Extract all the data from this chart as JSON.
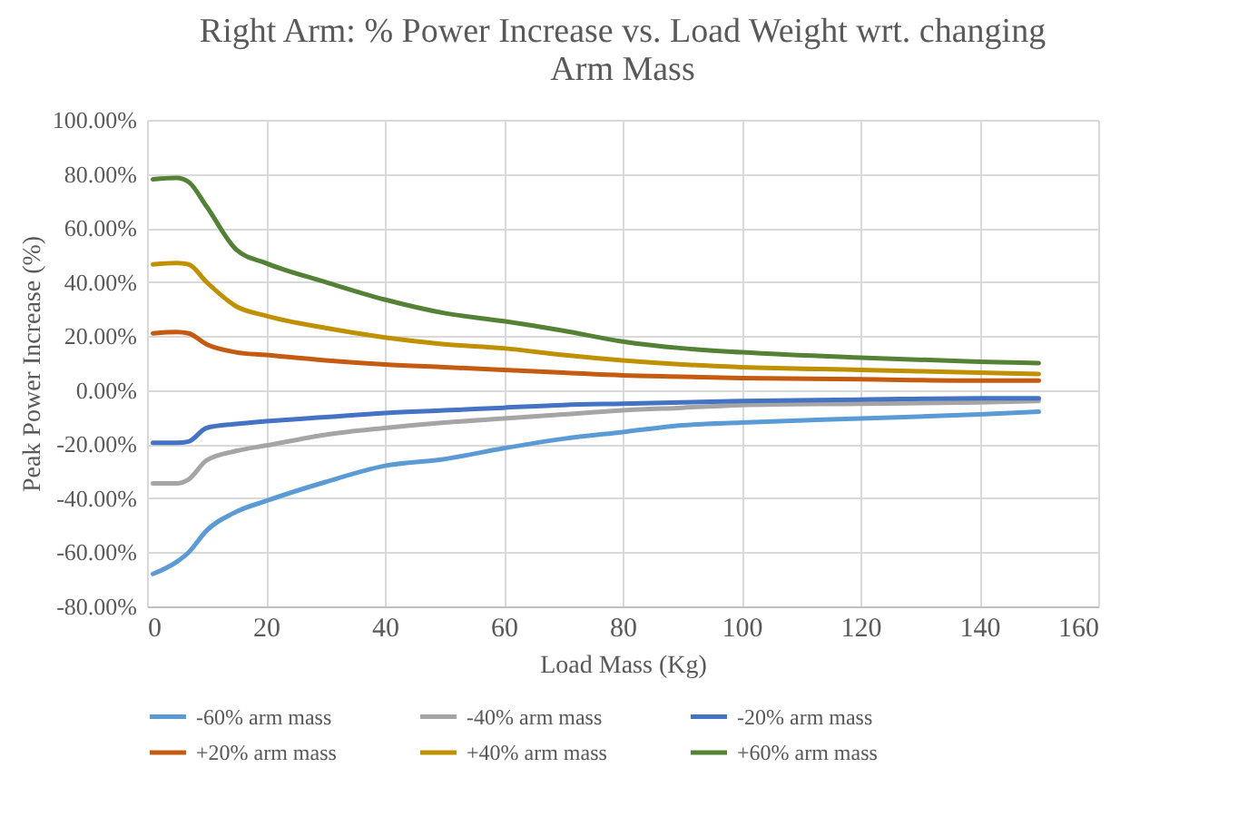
{
  "chart_data": {
    "type": "line",
    "title": "Right Arm: % Power Increase vs. Load Weight wrt. changing Arm Mass",
    "xlabel": "Load Mass (Kg)",
    "ylabel": "Peak Power Increase  (%)",
    "x": [
      1,
      5,
      7,
      10,
      15,
      20,
      30,
      40,
      50,
      60,
      70,
      80,
      90,
      100,
      120,
      140,
      150
    ],
    "series": [
      {
        "name": "-60% arm mass",
        "color": "#5b9bd5",
        "values": [
          -68,
          -63.5,
          -60,
          -52,
          -45,
          -41,
          -34,
          -28,
          -25.5,
          -21.5,
          -18,
          -15.5,
          -13,
          -12,
          -10.5,
          -9,
          -8
        ]
      },
      {
        "name": "-40% arm mass",
        "color": "#a5a5a5",
        "values": [
          -34.5,
          -34.5,
          -33,
          -26,
          -22.5,
          -20.5,
          -16.5,
          -14,
          -12,
          -10.5,
          -9,
          -7.5,
          -6.5,
          -5.5,
          -5,
          -4.5,
          -4
        ]
      },
      {
        "name": "-20% arm mass",
        "color": "#4472c4",
        "values": [
          -19.5,
          -19.5,
          -19,
          -14,
          -12.5,
          -11.5,
          -10,
          -8.5,
          -7.5,
          -6.5,
          -5.5,
          -5,
          -4.5,
          -4,
          -3.5,
          -3,
          -3
        ]
      },
      {
        "name": "+20% arm mass",
        "color": "#c55a11",
        "values": [
          21,
          21.5,
          21,
          17,
          14,
          13,
          11,
          9.5,
          8.5,
          7.5,
          6.5,
          5.5,
          5,
          4.5,
          4,
          3.5,
          3.5
        ]
      },
      {
        "name": "+40% arm mass",
        "color": "#bf9000",
        "values": [
          46.5,
          47,
          46.5,
          40,
          31,
          27.5,
          23,
          19.5,
          17,
          15.5,
          13,
          11,
          9.5,
          8.5,
          7.5,
          6.5,
          6
        ]
      },
      {
        "name": "+60% arm mass",
        "color": "#548235",
        "values": [
          78,
          78.5,
          77,
          68,
          52,
          47,
          40,
          33.5,
          28.5,
          25.5,
          22,
          18,
          15.5,
          14,
          12,
          10.5,
          10
        ]
      }
    ],
    "xlim": [
      0,
      160
    ],
    "xticks": [
      0,
      20,
      40,
      60,
      80,
      100,
      120,
      140,
      160
    ],
    "ylim": [
      -80,
      100
    ],
    "yticks": [
      {
        "value": -80,
        "label": "-80.00%"
      },
      {
        "value": -60,
        "label": "-60.00%"
      },
      {
        "value": -40,
        "label": "-40.00%"
      },
      {
        "value": -20,
        "label": "-20.00%"
      },
      {
        "value": 0,
        "label": "0.00%"
      },
      {
        "value": 20,
        "label": "20.00%"
      },
      {
        "value": 40,
        "label": "40.00%"
      },
      {
        "value": 60,
        "label": "60.00%"
      },
      {
        "value": 80,
        "label": "80.00%"
      },
      {
        "value": 100,
        "label": "100.00%"
      }
    ],
    "grid": true,
    "legend": "bottom",
    "marker": "none",
    "line_style": "solid"
  }
}
